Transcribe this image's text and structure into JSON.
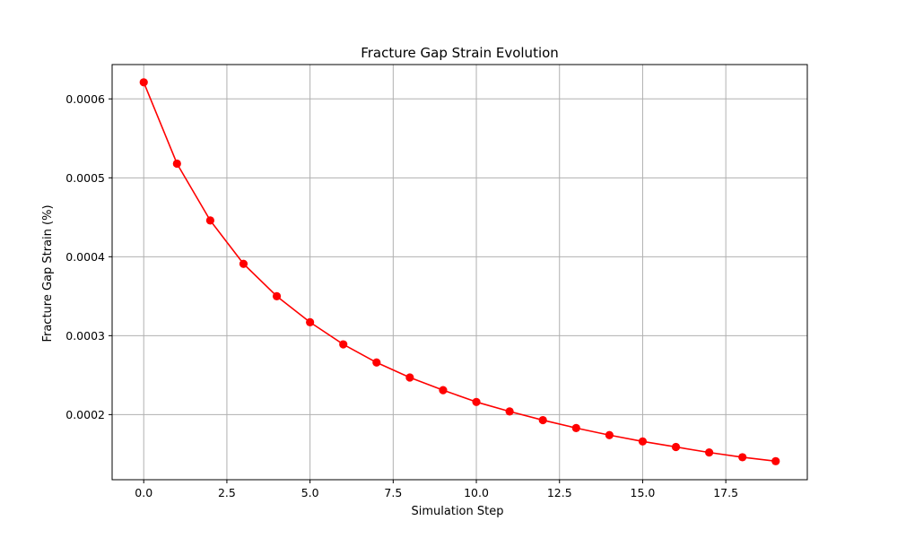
{
  "chart_data": {
    "type": "line",
    "title": "Fracture Gap Strain Evolution",
    "xlabel": "Simulation Step",
    "ylabel": "Fracture Gap Strain (%)",
    "xlim": [
      -0.95,
      19.95
    ],
    "ylim": [
      0.0001175,
      0.0006435
    ],
    "xticks": [
      0,
      2.5,
      5,
      7.5,
      10,
      12.5,
      15,
      17.5
    ],
    "xtick_labels": [
      "0.0",
      "2.5",
      "5.0",
      "7.5",
      "10.0",
      "12.5",
      "15.0",
      "17.5"
    ],
    "yticks": [
      0.0002,
      0.0003,
      0.0004,
      0.0005,
      0.0006
    ],
    "ytick_labels": [
      "0.0002",
      "0.0003",
      "0.0004",
      "0.0005",
      "0.0006"
    ],
    "grid": true,
    "series": [
      {
        "x": [
          0,
          1,
          2,
          3,
          4,
          5,
          6,
          7,
          8,
          9,
          10,
          11,
          12,
          13,
          14,
          15,
          16,
          17,
          18,
          19
        ],
        "y": [
          0.000621,
          0.000518,
          0.000446,
          0.000391,
          0.00035,
          0.000317,
          0.000289,
          0.000266,
          0.000247,
          0.000231,
          0.000216,
          0.000204,
          0.000193,
          0.000183,
          0.000174,
          0.000166,
          0.000159,
          0.000152,
          0.000146,
          0.000141
        ],
        "color": "#ff0000",
        "marker": "circle"
      }
    ]
  }
}
